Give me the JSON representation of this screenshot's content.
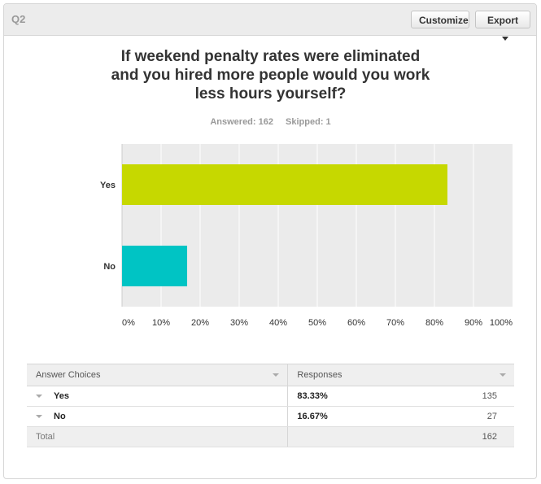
{
  "header": {
    "question_id": "Q2",
    "customize_label": "Customize",
    "export_label": "Export"
  },
  "question": {
    "title_line1": "If weekend penalty rates were eliminated",
    "title_line2": "and you hired more people would you work",
    "title_line3": "less hours yourself?",
    "answered": "Answered: 162",
    "skipped": "Skipped: 1"
  },
  "colors": {
    "yes_bar": "#c6d800",
    "no_bar": "#00c4c4",
    "plot_bg": "#ebebeb",
    "grid": "#ffffff"
  },
  "chart_data": {
    "type": "bar",
    "orientation": "horizontal",
    "categories": [
      "Yes",
      "No"
    ],
    "values": [
      83.33,
      16.67
    ],
    "xlim": [
      0,
      100
    ],
    "x_ticks": [
      "0%",
      "10%",
      "20%",
      "30%",
      "40%",
      "50%",
      "60%",
      "70%",
      "80%",
      "90%",
      "100%"
    ],
    "grid": true
  },
  "table": {
    "col1_header": "Answer Choices",
    "col2_header": "Responses",
    "rows": [
      {
        "label": "Yes",
        "pct": "83.33%",
        "count": "135"
      },
      {
        "label": "No",
        "pct": "16.67%",
        "count": "27"
      }
    ],
    "total_label": "Total",
    "total_count": "162"
  }
}
